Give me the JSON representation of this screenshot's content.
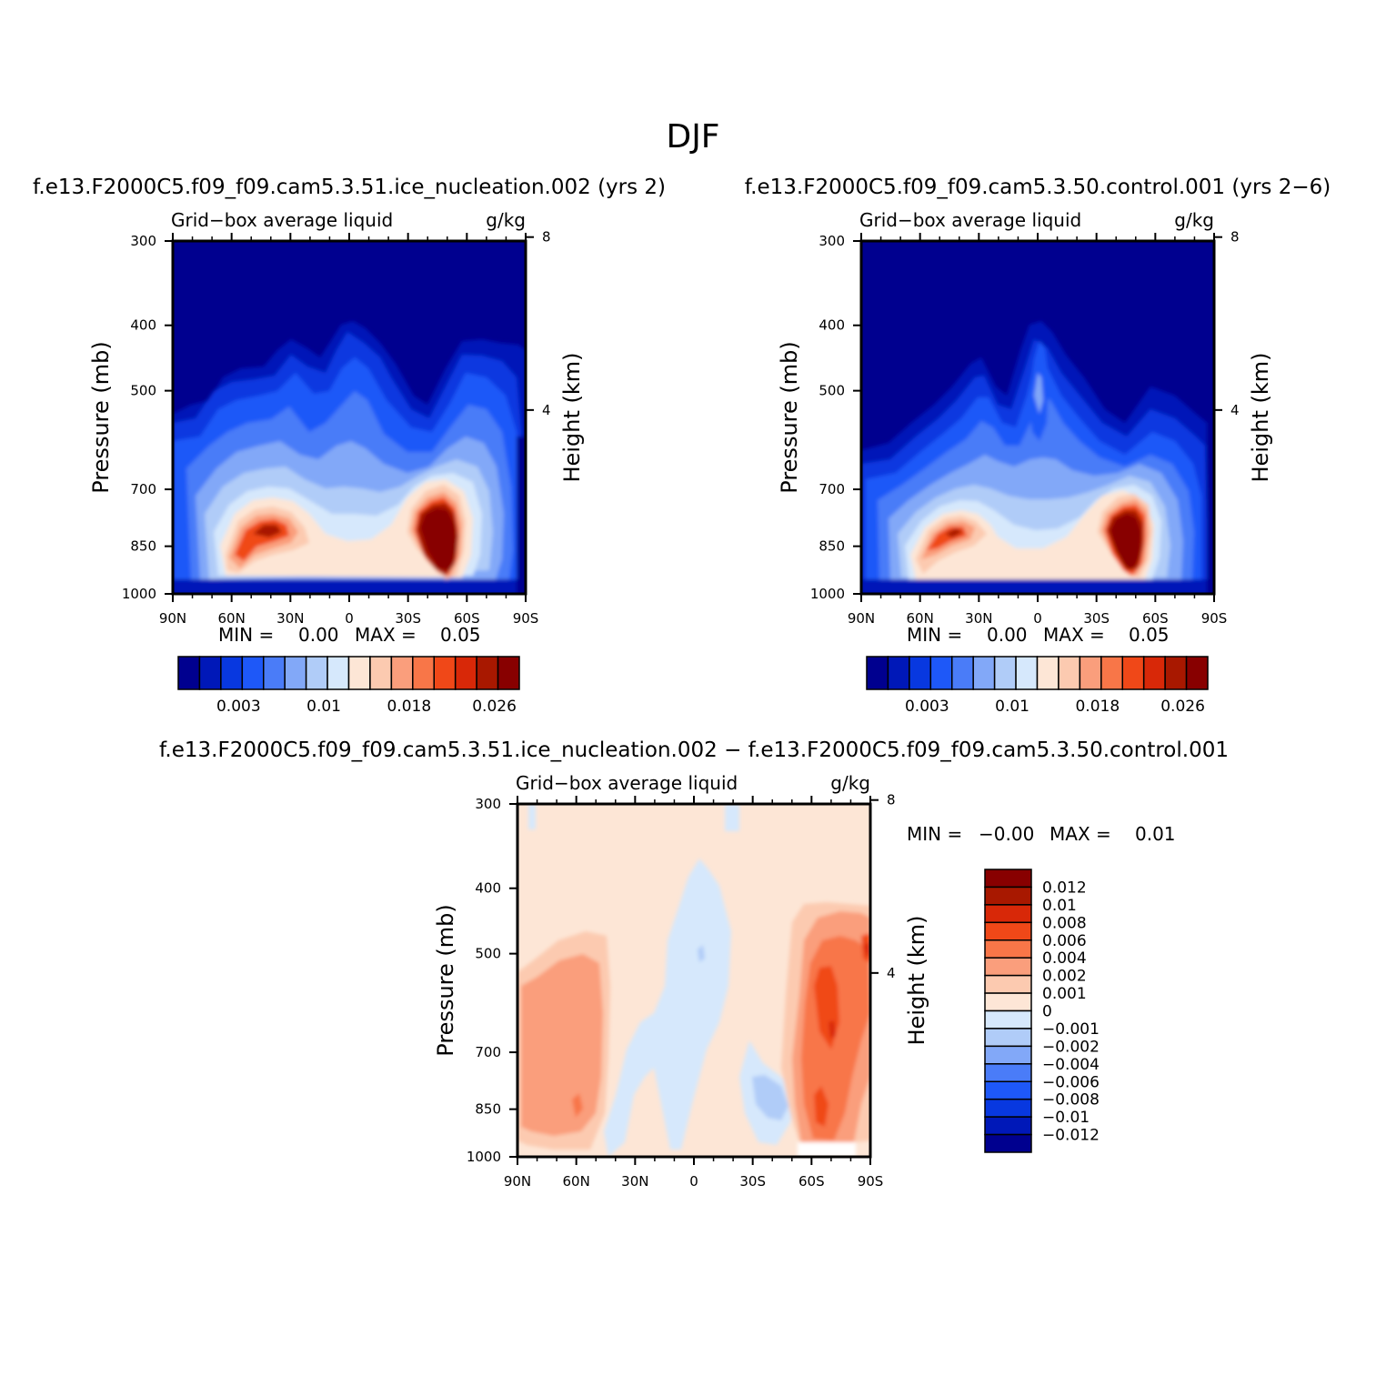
{
  "title": "DJF",
  "colors": {
    "liquid": [
      "#00008f",
      "#0018b8",
      "#0838e0",
      "#1e58f8",
      "#4a7cf8",
      "#82a8f8",
      "#b0ccf8",
      "#d6e8fc",
      "#fde6d6",
      "#fccab0",
      "#fa9e7c",
      "#f87648",
      "#f04818",
      "#d82808",
      "#a81800",
      "#880000"
    ],
    "diff": [
      "#00008f",
      "#0018b8",
      "#0838e0",
      "#1e58f8",
      "#4a7cf8",
      "#82a8f8",
      "#b0ccf8",
      "#d6e8fc",
      "#fde6d6",
      "#fccab0",
      "#fa9e7c",
      "#f87648",
      "#f04818",
      "#d82808",
      "#a81800",
      "#880000"
    ]
  },
  "chart_data": [
    {
      "type": "contour",
      "panel": "test",
      "case_title": "f.e13.F2000C5.f09_f09.cam5.3.51.ice_nucleation.002 (yrs 2)",
      "variable": "Grid−box average liquid",
      "units": "g/kg",
      "ylabel": "Pressure (mb)",
      "y2label": "Height (km)",
      "xticks": [
        "90N",
        "60N",
        "30N",
        "0",
        "30S",
        "60S",
        "90S"
      ],
      "yticks": [
        "300",
        "400",
        "500",
        "700",
        "850",
        "1000"
      ],
      "y2ticks": [
        "8",
        "4"
      ],
      "min_label": "MIN =",
      "min_value": "0.00",
      "max_label": "MAX =",
      "max_value": "0.05",
      "colorbar_labels": [
        "0.003",
        "0.01",
        "0.018",
        "0.026"
      ],
      "ylim": [
        300,
        1000
      ],
      "lat_range": [
        90,
        -90
      ]
    },
    {
      "type": "contour",
      "panel": "control",
      "case_title": "f.e13.F2000C5.f09_f09.cam5.3.50.control.001 (yrs 2−6)",
      "variable": "Grid−box average liquid",
      "units": "g/kg",
      "ylabel": "Pressure (mb)",
      "y2label": "Height (km)",
      "xticks": [
        "90N",
        "60N",
        "30N",
        "0",
        "30S",
        "60S",
        "90S"
      ],
      "yticks": [
        "300",
        "400",
        "500",
        "700",
        "850",
        "1000"
      ],
      "y2ticks": [
        "8",
        "4"
      ],
      "min_label": "MIN =",
      "min_value": "0.00",
      "max_label": "MAX =",
      "max_value": "0.05",
      "colorbar_labels": [
        "0.003",
        "0.01",
        "0.018",
        "0.026"
      ],
      "ylim": [
        300,
        1000
      ],
      "lat_range": [
        90,
        -90
      ]
    },
    {
      "type": "contour",
      "panel": "difference",
      "case_title": "f.e13.F2000C5.f09_f09.cam5.3.51.ice_nucleation.002 − f.e13.F2000C5.f09_f09.cam5.3.50.control.001",
      "variable": "Grid−box average liquid",
      "units": "g/kg",
      "ylabel": "Pressure (mb)",
      "y2label": "Height (km)",
      "xticks": [
        "90N",
        "60N",
        "30N",
        "0",
        "30S",
        "60S",
        "90S"
      ],
      "yticks": [
        "300",
        "400",
        "500",
        "700",
        "850",
        "1000"
      ],
      "y2ticks": [
        "8",
        "4"
      ],
      "min_label": "MIN =",
      "min_value": "−0.00",
      "max_label": "MAX =",
      "max_value": "0.01",
      "colorbar_labels": [
        "0.012",
        "0.01",
        "0.008",
        "0.006",
        "0.004",
        "0.002",
        "0.001",
        "0",
        "−0.001",
        "−0.002",
        "−0.004",
        "−0.006",
        "−0.008",
        "−0.01",
        "−0.012"
      ],
      "ylim": [
        300,
        1000
      ],
      "lat_range": [
        90,
        -90
      ]
    }
  ]
}
